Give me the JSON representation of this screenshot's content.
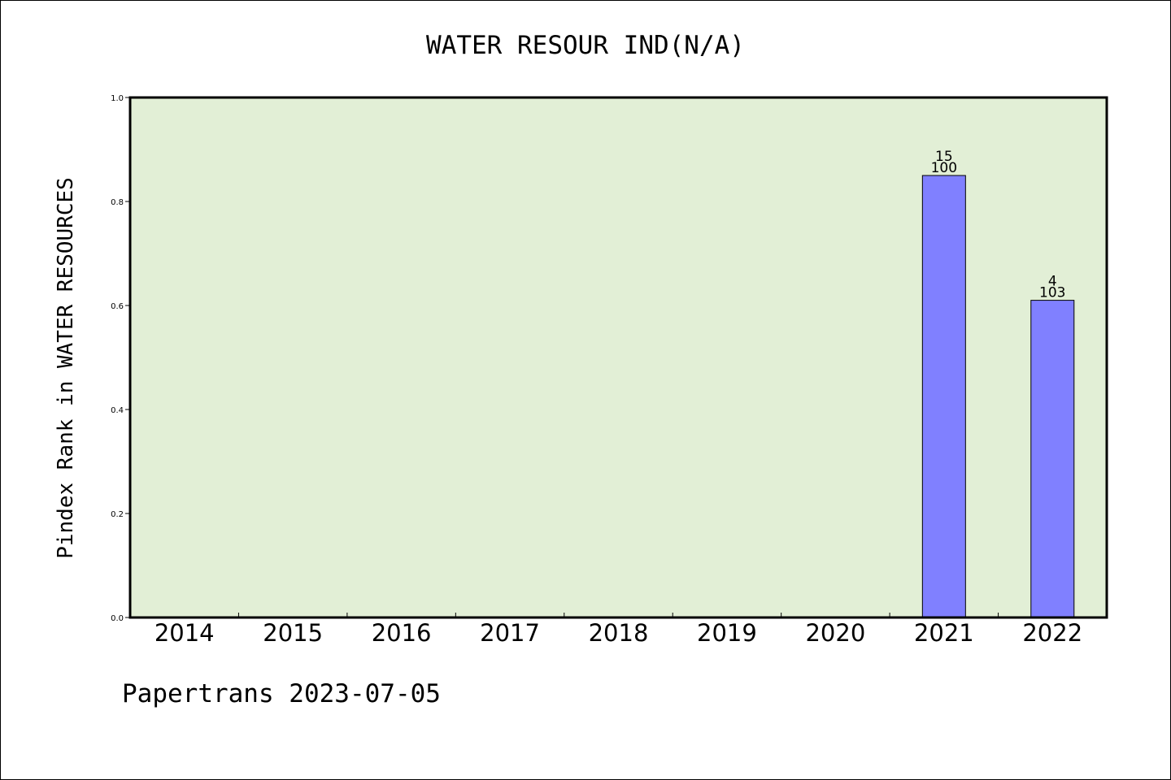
{
  "chart_data": {
    "type": "bar",
    "title": "WATER RESOUR IND(N/A)",
    "ylabel": "Pindex Rank in WATER RESOURCES",
    "xlabel": "",
    "categories": [
      "2014",
      "2015",
      "2016",
      "2017",
      "2018",
      "2019",
      "2020",
      "2021",
      "2022"
    ],
    "values": [
      null,
      null,
      null,
      null,
      null,
      null,
      null,
      0.85,
      0.61
    ],
    "bar_labels_top": [
      "",
      "",
      "",
      "",
      "",
      "",
      "",
      "15",
      "4"
    ],
    "bar_labels_bottom": [
      "",
      "",
      "",
      "",
      "",
      "",
      "",
      "100",
      "103"
    ],
    "ylim": [
      0,
      1.0
    ],
    "yticks": [
      "0.0",
      "0.2",
      "0.4",
      "0.6",
      "0.8",
      "1.0"
    ],
    "grid": false,
    "colors": {
      "plot_background": "#e2efd6",
      "bar_fill": "#8080ff",
      "bar_edge": "#000000"
    }
  },
  "footer": "Papertrans 2023-07-05"
}
